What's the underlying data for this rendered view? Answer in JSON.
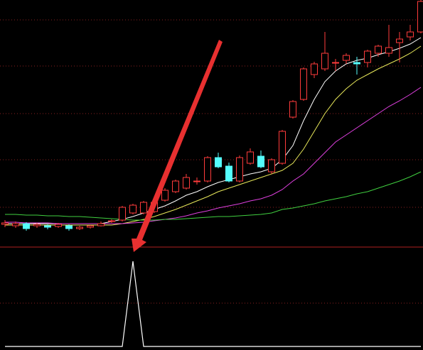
{
  "chart_data": {
    "type": "candlestick",
    "up_color": "#ff3b3b",
    "down_color": "#54fcfc",
    "ylim": [
      0,
      345
    ],
    "open": [
      29,
      27,
      30,
      27,
      27,
      26,
      27,
      23,
      25,
      27,
      33,
      35,
      45,
      45,
      47,
      63,
      75,
      80,
      90,
      90,
      123,
      111,
      90,
      115,
      125,
      103,
      115,
      180,
      205,
      240,
      248,
      257,
      260,
      257,
      257,
      270,
      270,
      285,
      293,
      300
    ],
    "high": [
      35,
      33,
      32,
      31,
      29,
      31,
      29,
      27,
      28,
      33,
      36,
      55,
      58,
      62,
      62,
      80,
      92,
      100,
      95,
      125,
      130,
      116,
      126,
      136,
      133,
      122,
      162,
      204,
      250,
      258,
      300,
      262,
      270,
      265,
      275,
      282,
      310,
      300,
      310,
      345
    ],
    "low": [
      25,
      24,
      20,
      24,
      22,
      24,
      20,
      21,
      23,
      26,
      31,
      33,
      43,
      43,
      45,
      61,
      73,
      78,
      85,
      88,
      108,
      88,
      88,
      113,
      108,
      100,
      113,
      178,
      203,
      235,
      245,
      245,
      255,
      240,
      250,
      265,
      265,
      257,
      288,
      298
    ],
    "close": [
      31,
      30,
      23,
      29,
      25,
      29,
      23,
      25,
      27,
      30,
      34,
      53,
      56,
      60,
      60,
      77,
      90,
      95,
      90,
      123,
      110,
      90,
      123,
      131,
      110,
      120,
      160,
      202,
      248,
      255,
      270,
      257,
      267,
      255,
      273,
      280,
      278,
      290,
      300,
      343
    ],
    "lines": [
      {
        "color": "#ffffff",
        "values": [
          30,
          30,
          30,
          30,
          30,
          30,
          30,
          30,
          30,
          30,
          33,
          36,
          40,
          45,
          50,
          55,
          62,
          70,
          75,
          82,
          88,
          92,
          96,
          100,
          103,
          108,
          120,
          140,
          175,
          205,
          230,
          245,
          255,
          260,
          263,
          268,
          272,
          277,
          283,
          292
        ]
      },
      {
        "color": "#e8e85a",
        "values": [
          28,
          28,
          28,
          28,
          28,
          28,
          28,
          28,
          28,
          28,
          28,
          30,
          33,
          36,
          40,
          45,
          50,
          56,
          62,
          68,
          75,
          80,
          85,
          90,
          95,
          100,
          105,
          115,
          135,
          160,
          185,
          205,
          220,
          232,
          240,
          248,
          255,
          262,
          270,
          280
        ]
      },
      {
        "color": "#e040e0",
        "values": [
          32,
          32,
          31,
          31,
          31,
          30,
          30,
          30,
          30,
          30,
          30,
          30,
          31,
          32,
          34,
          36,
          38,
          41,
          45,
          48,
          52,
          55,
          58,
          62,
          65,
          70,
          78,
          90,
          100,
          115,
          130,
          145,
          155,
          165,
          175,
          185,
          195,
          203,
          212,
          222
        ]
      },
      {
        "color": "#40d040",
        "values": [
          43,
          43,
          42,
          42,
          41,
          41,
          40,
          40,
          39,
          38,
          37,
          36,
          35,
          35,
          35,
          36,
          36,
          37,
          38,
          39,
          40,
          40,
          41,
          42,
          43,
          45,
          50,
          52,
          55,
          58,
          62,
          65,
          68,
          72,
          75,
          80,
          85,
          90,
          96,
          103
        ]
      }
    ],
    "indicator": {
      "color": "#ffffff",
      "ylim": [
        0,
        1
      ],
      "values": [
        0,
        0,
        0,
        0,
        0,
        0,
        0,
        0,
        0,
        0,
        0,
        0,
        1,
        0,
        0,
        0,
        0,
        0,
        0,
        0,
        0,
        0,
        0,
        0,
        0,
        0,
        0,
        0,
        0,
        0,
        0,
        0,
        0,
        0,
        0,
        0,
        0,
        0,
        0,
        0
      ]
    }
  }
}
